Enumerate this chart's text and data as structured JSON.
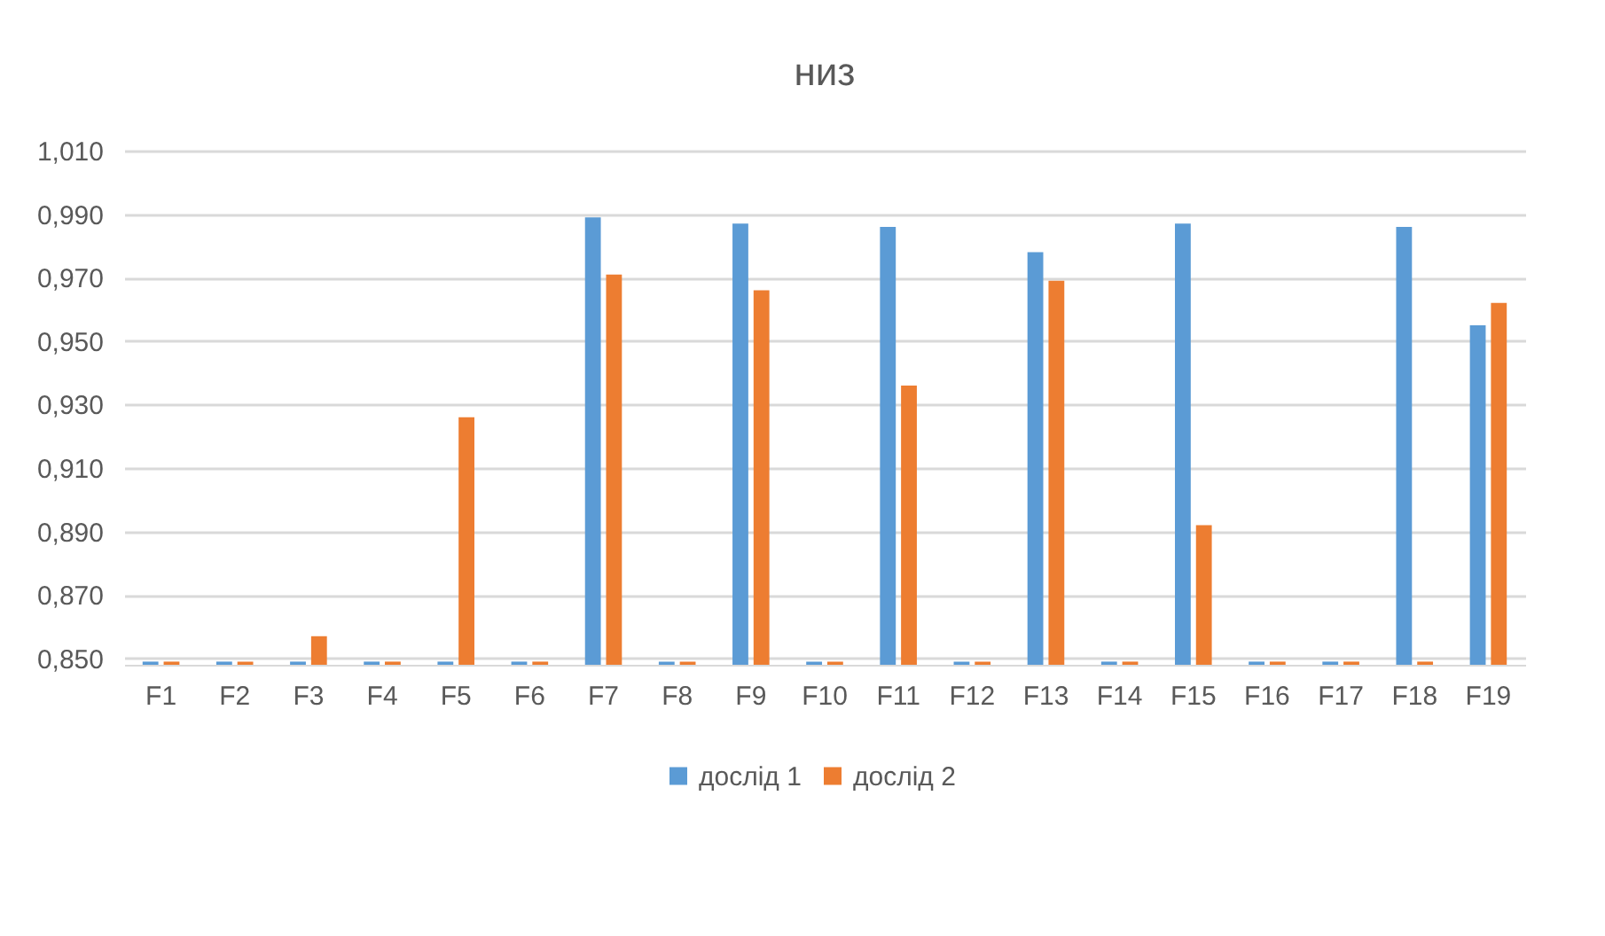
{
  "chart_data": {
    "type": "bar",
    "title": "низ",
    "categories": [
      "F1",
      "F2",
      "F3",
      "F4",
      "F5",
      "F6",
      "F7",
      "F8",
      "F9",
      "F10",
      "F11",
      "F12",
      "F13",
      "F14",
      "F15",
      "F16",
      "F17",
      "F18",
      "F19"
    ],
    "series": [
      {
        "name": "дослід 1",
        "color": "#5b9bd5",
        "values": [
          0.849,
          0.849,
          0.849,
          0.849,
          0.849,
          0.849,
          0.989,
          0.849,
          0.987,
          0.849,
          0.986,
          0.849,
          0.978,
          0.849,
          0.987,
          0.849,
          0.849,
          0.986,
          0.955
        ]
      },
      {
        "name": "дослід 2",
        "color": "#ed7d31",
        "values": [
          0.849,
          0.849,
          0.857,
          0.849,
          0.926,
          0.849,
          0.971,
          0.849,
          0.966,
          0.849,
          0.936,
          0.849,
          0.969,
          0.849,
          0.892,
          0.849,
          0.849,
          0.849,
          0.962
        ]
      }
    ],
    "ylim": [
      0.848,
      1.01
    ],
    "yticks": [
      {
        "value": 0.85,
        "label": "0,850"
      },
      {
        "value": 0.87,
        "label": "0,870"
      },
      {
        "value": 0.89,
        "label": "0,890"
      },
      {
        "value": 0.91,
        "label": "0,910"
      },
      {
        "value": 0.93,
        "label": "0,930"
      },
      {
        "value": 0.95,
        "label": "0,950"
      },
      {
        "value": 0.97,
        "label": "0,970"
      },
      {
        "value": 0.99,
        "label": "0,990"
      },
      {
        "value": 1.01,
        "label": "1,010"
      }
    ],
    "grid": "y",
    "legend": "bottom"
  }
}
